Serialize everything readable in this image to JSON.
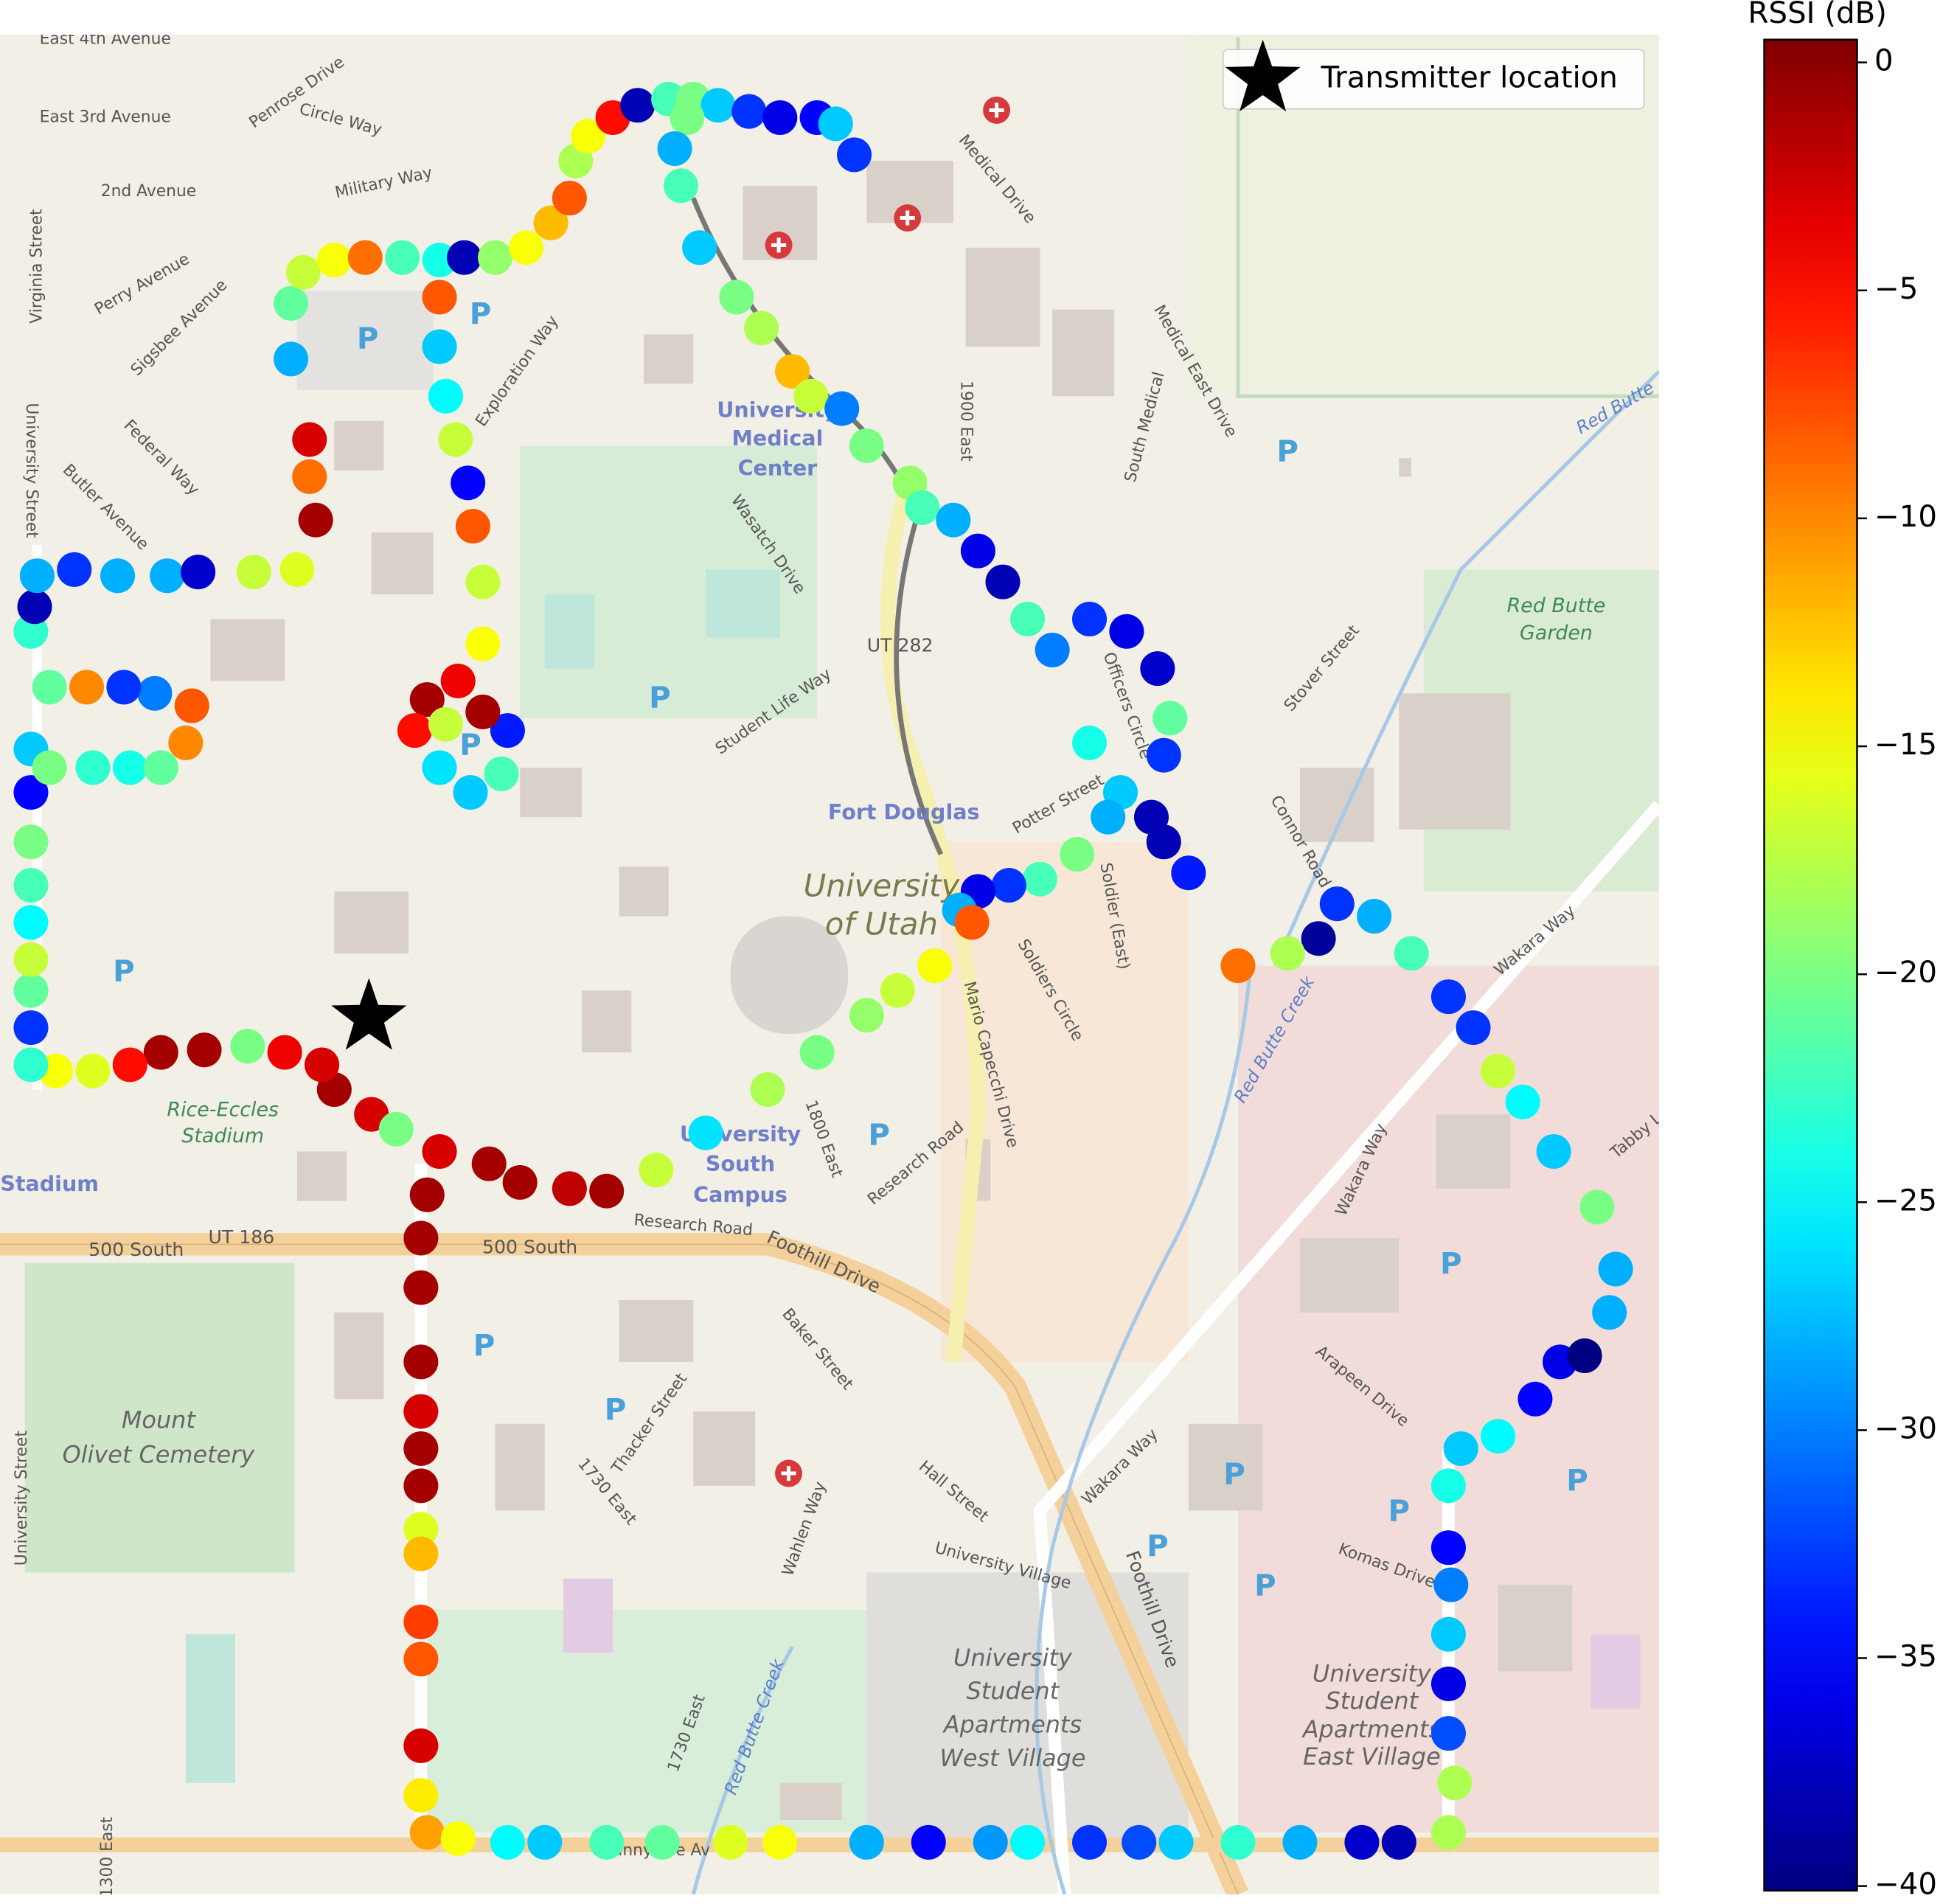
{
  "chart_data": {
    "type": "map-scatter",
    "xlim": [
      0,
      1340
    ],
    "ylim": [
      1530,
      28
    ],
    "colormap": "jet",
    "colorbar": {
      "label": "RSSI (dB)",
      "clim": [
        -40.1,
        0.5
      ],
      "ticks": [
        0,
        {
          "value": -5,
          "label": "−5"
        },
        {
          "value": -10,
          "label": "−10"
        },
        {
          "value": -15,
          "label": "−15"
        },
        {
          "value": -20,
          "label": "−20"
        },
        {
          "value": -25,
          "label": "−25"
        },
        {
          "value": -30,
          "label": "−30"
        },
        {
          "value": -35,
          "label": "−35"
        },
        {
          "value": -40,
          "label": "−40"
        }
      ]
    },
    "legend": {
      "label": "Transmitter location",
      "loc": "upper right"
    },
    "transmitter": {
      "x": 298,
      "y": 822
    },
    "parking_symbol": "P",
    "map_labels": [
      "East 4th Avenue",
      "East 3rd Avenue",
      "2nd Avenue",
      "Penrose Drive",
      "Circle Way",
      "Military Way",
      "Virginia Street",
      "Perry Avenue",
      "Sigsbee Avenue",
      "Federal Way",
      "Butler Avenue",
      "University Street",
      "Exploration Way",
      "University",
      "Medical",
      "Center",
      "Medical Drive",
      "Medical East Drive",
      "South Medical",
      "1900 East",
      "Wasatch Drive",
      "UT 282",
      "Student Life Way",
      "Officers Circle",
      "Potter Street",
      "Fort Douglas",
      "University",
      "of Utah",
      "Soldier (East)",
      "Soldiers Circle",
      "Mario Capecchi Drive",
      "Stover Street",
      "Connor Road",
      "Red Butte",
      "Garden",
      "Red Butte",
      "Red Butte Creek",
      "Wakara Way",
      "Wakara Way",
      "Wakara Way",
      "Tabby La",
      "1800 East",
      "Research Road",
      "Research Road",
      "University",
      "South",
      "Campus",
      "UT 186",
      "500 South",
      "500 South",
      "Foothill Drive",
      "Foothill Drive",
      "Rice-Eccles",
      "Stadium",
      "Stadium",
      "Mount",
      "Olivet Cemetery",
      "Baker Street",
      "Thacker Street",
      "1730 East",
      "1730 East",
      "Wahlen Way",
      "Hall Street",
      "University Village",
      "Arapeen Drive",
      "Komas Drive",
      "Red Butte Creek",
      "University",
      "Student",
      "Apartments",
      "West Village",
      "University",
      "Student",
      "Apartments",
      "East Village",
      "Sunnyside Av",
      "University Street",
      "1300 East"
    ],
    "points": [
      {
        "x": 235,
        "y": 290,
        "value": -28
      },
      {
        "x": 235,
        "y": 245,
        "value": -21
      },
      {
        "x": 245,
        "y": 220,
        "value": -17
      },
      {
        "x": 270,
        "y": 210,
        "value": -15
      },
      {
        "x": 295,
        "y": 208,
        "value": -9
      },
      {
        "x": 325,
        "y": 208,
        "value": -22
      },
      {
        "x": 355,
        "y": 210,
        "value": -24
      },
      {
        "x": 375,
        "y": 208,
        "value": -38
      },
      {
        "x": 400,
        "y": 208,
        "value": -19
      },
      {
        "x": 425,
        "y": 200,
        "value": -15
      },
      {
        "x": 445,
        "y": 180,
        "value": -12
      },
      {
        "x": 460,
        "y": 160,
        "value": -8
      },
      {
        "x": 465,
        "y": 130,
        "value": -18
      },
      {
        "x": 475,
        "y": 110,
        "value": -15
      },
      {
        "x": 495,
        "y": 95,
        "value": -5
      },
      {
        "x": 515,
        "y": 85,
        "value": -38
      },
      {
        "x": 540,
        "y": 80,
        "value": -22
      },
      {
        "x": 560,
        "y": 80,
        "value": -20
      },
      {
        "x": 580,
        "y": 85,
        "value": -27
      },
      {
        "x": 605,
        "y": 90,
        "value": -33
      },
      {
        "x": 630,
        "y": 95,
        "value": -36
      },
      {
        "x": 660,
        "y": 95,
        "value": -35
      },
      {
        "x": 675,
        "y": 100,
        "value": -27
      },
      {
        "x": 690,
        "y": 125,
        "value": -33
      },
      {
        "x": 555,
        "y": 95,
        "value": -20
      },
      {
        "x": 545,
        "y": 120,
        "value": -28
      },
      {
        "x": 550,
        "y": 150,
        "value": -22
      },
      {
        "x": 565,
        "y": 200,
        "value": -27
      },
      {
        "x": 595,
        "y": 240,
        "value": -20
      },
      {
        "x": 615,
        "y": 265,
        "value": -18
      },
      {
        "x": 640,
        "y": 300,
        "value": -12
      },
      {
        "x": 655,
        "y": 320,
        "value": -17
      },
      {
        "x": 680,
        "y": 330,
        "value": -30
      },
      {
        "x": 700,
        "y": 360,
        "value": -20
      },
      {
        "x": 735,
        "y": 390,
        "value": -19
      },
      {
        "x": 745,
        "y": 410,
        "value": -22
      },
      {
        "x": 770,
        "y": 420,
        "value": -28
      },
      {
        "x": 790,
        "y": 445,
        "value": -36
      },
      {
        "x": 810,
        "y": 470,
        "value": -38
      },
      {
        "x": 830,
        "y": 500,
        "value": -22
      },
      {
        "x": 850,
        "y": 525,
        "value": -30
      },
      {
        "x": 880,
        "y": 500,
        "value": -33
      },
      {
        "x": 910,
        "y": 510,
        "value": -36
      },
      {
        "x": 935,
        "y": 540,
        "value": -37
      },
      {
        "x": 945,
        "y": 580,
        "value": -21
      },
      {
        "x": 940,
        "y": 610,
        "value": -33
      },
      {
        "x": 930,
        "y": 660,
        "value": -38
      },
      {
        "x": 905,
        "y": 640,
        "value": -27
      },
      {
        "x": 880,
        "y": 600,
        "value": -24
      },
      {
        "x": 895,
        "y": 660,
        "value": -28
      },
      {
        "x": 870,
        "y": 690,
        "value": -20
      },
      {
        "x": 840,
        "y": 710,
        "value": -22
      },
      {
        "x": 815,
        "y": 715,
        "value": -33
      },
      {
        "x": 790,
        "y": 720,
        "value": -36
      },
      {
        "x": 775,
        "y": 735,
        "value": -28
      },
      {
        "x": 785,
        "y": 745,
        "value": -8
      },
      {
        "x": 755,
        "y": 780,
        "value": -15
      },
      {
        "x": 725,
        "y": 800,
        "value": -17
      },
      {
        "x": 700,
        "y": 820,
        "value": -19
      },
      {
        "x": 660,
        "y": 850,
        "value": -20
      },
      {
        "x": 620,
        "y": 880,
        "value": -18
      },
      {
        "x": 570,
        "y": 915,
        "value": -26
      },
      {
        "x": 530,
        "y": 945,
        "value": -17
      },
      {
        "x": 490,
        "y": 962,
        "value": -1
      },
      {
        "x": 460,
        "y": 960,
        "value": -2
      },
      {
        "x": 420,
        "y": 955,
        "value": -1
      },
      {
        "x": 395,
        "y": 940,
        "value": -1
      },
      {
        "x": 355,
        "y": 930,
        "value": -3
      },
      {
        "x": 345,
        "y": 965,
        "value": -1
      },
      {
        "x": 340,
        "y": 1000,
        "value": -1
      },
      {
        "x": 340,
        "y": 1040,
        "value": -1
      },
      {
        "x": 340,
        "y": 1100,
        "value": -1
      },
      {
        "x": 340,
        "y": 1140,
        "value": -3
      },
      {
        "x": 340,
        "y": 1170,
        "value": -1
      },
      {
        "x": 340,
        "y": 1200,
        "value": -1
      },
      {
        "x": 340,
        "y": 1235,
        "value": -16
      },
      {
        "x": 340,
        "y": 1255,
        "value": -12
      },
      {
        "x": 340,
        "y": 1310,
        "value": -7
      },
      {
        "x": 340,
        "y": 1340,
        "value": -8
      },
      {
        "x": 340,
        "y": 1410,
        "value": -3
      },
      {
        "x": 340,
        "y": 1450,
        "value": -14
      },
      {
        "x": 345,
        "y": 1480,
        "value": -11
      },
      {
        "x": 370,
        "y": 1485,
        "value": -15
      },
      {
        "x": 410,
        "y": 1488,
        "value": -25
      },
      {
        "x": 440,
        "y": 1488,
        "value": -27
      },
      {
        "x": 490,
        "y": 1488,
        "value": -22
      },
      {
        "x": 535,
        "y": 1488,
        "value": -21
      },
      {
        "x": 590,
        "y": 1488,
        "value": -16
      },
      {
        "x": 630,
        "y": 1488,
        "value": -15
      },
      {
        "x": 700,
        "y": 1488,
        "value": -28
      },
      {
        "x": 750,
        "y": 1488,
        "value": -35
      },
      {
        "x": 800,
        "y": 1488,
        "value": -29
      },
      {
        "x": 830,
        "y": 1488,
        "value": -25
      },
      {
        "x": 880,
        "y": 1488,
        "value": -33
      },
      {
        "x": 920,
        "y": 1488,
        "value": -32
      },
      {
        "x": 950,
        "y": 1488,
        "value": -27
      },
      {
        "x": 1000,
        "y": 1488,
        "value": -23
      },
      {
        "x": 1050,
        "y": 1488,
        "value": -28
      },
      {
        "x": 1100,
        "y": 1488,
        "value": -37
      },
      {
        "x": 1130,
        "y": 1488,
        "value": -38
      },
      {
        "x": 1170,
        "y": 1480,
        "value": -18
      },
      {
        "x": 1175,
        "y": 1440,
        "value": -18
      },
      {
        "x": 1170,
        "y": 1400,
        "value": -32
      },
      {
        "x": 1170,
        "y": 1360,
        "value": -36
      },
      {
        "x": 1170,
        "y": 1320,
        "value": -27
      },
      {
        "x": 1172,
        "y": 1280,
        "value": -30
      },
      {
        "x": 1170,
        "y": 1250,
        "value": -35
      },
      {
        "x": 1170,
        "y": 1200,
        "value": -24
      },
      {
        "x": 1180,
        "y": 1170,
        "value": -27
      },
      {
        "x": 1210,
        "y": 1160,
        "value": -25
      },
      {
        "x": 1240,
        "y": 1130,
        "value": -35
      },
      {
        "x": 1260,
        "y": 1100,
        "value": -36
      },
      {
        "x": 1280,
        "y": 1095,
        "value": -40
      },
      {
        "x": 1300,
        "y": 1060,
        "value": -28
      },
      {
        "x": 1305,
        "y": 1025,
        "value": -28
      },
      {
        "x": 1290,
        "y": 975,
        "value": -20
      },
      {
        "x": 1255,
        "y": 930,
        "value": -27
      },
      {
        "x": 1230,
        "y": 890,
        "value": -25
      },
      {
        "x": 1210,
        "y": 865,
        "value": -17
      },
      {
        "x": 1190,
        "y": 830,
        "value": -33
      },
      {
        "x": 1170,
        "y": 805,
        "value": -33
      },
      {
        "x": 1140,
        "y": 770,
        "value": -22
      },
      {
        "x": 1110,
        "y": 740,
        "value": -28
      },
      {
        "x": 1080,
        "y": 730,
        "value": -33
      },
      {
        "x": 1065,
        "y": 758,
        "value": -39
      },
      {
        "x": 1040,
        "y": 770,
        "value": -18
      },
      {
        "x": 1000,
        "y": 780,
        "value": -9
      },
      {
        "x": 960,
        "y": 705,
        "value": -34
      },
      {
        "x": 940,
        "y": 680,
        "value": -38
      },
      {
        "x": 300,
        "y": 900,
        "value": -3
      },
      {
        "x": 270,
        "y": 880,
        "value": -1
      },
      {
        "x": 260,
        "y": 860,
        "value": -3
      },
      {
        "x": 230,
        "y": 850,
        "value": -4
      },
      {
        "x": 200,
        "y": 845,
        "value": -20
      },
      {
        "x": 165,
        "y": 848,
        "value": -1
      },
      {
        "x": 130,
        "y": 850,
        "value": -1
      },
      {
        "x": 105,
        "y": 860,
        "value": -5
      },
      {
        "x": 75,
        "y": 865,
        "value": -16
      },
      {
        "x": 45,
        "y": 865,
        "value": -15
      },
      {
        "x": 25,
        "y": 860,
        "value": -23
      },
      {
        "x": 25,
        "y": 830,
        "value": -33
      },
      {
        "x": 25,
        "y": 800,
        "value": -21
      },
      {
        "x": 25,
        "y": 775,
        "value": -17
      },
      {
        "x": 25,
        "y": 745,
        "value": -25
      },
      {
        "x": 25,
        "y": 715,
        "value": -22
      },
      {
        "x": 25,
        "y": 680,
        "value": -20
      },
      {
        "x": 25,
        "y": 640,
        "value": -35
      },
      {
        "x": 25,
        "y": 605,
        "value": -27
      },
      {
        "x": 40,
        "y": 620,
        "value": -20
      },
      {
        "x": 75,
        "y": 620,
        "value": -23
      },
      {
        "x": 105,
        "y": 620,
        "value": -24
      },
      {
        "x": 130,
        "y": 620,
        "value": -21
      },
      {
        "x": 150,
        "y": 600,
        "value": -10
      },
      {
        "x": 155,
        "y": 570,
        "value": -8
      },
      {
        "x": 125,
        "y": 560,
        "value": -30
      },
      {
        "x": 100,
        "y": 555,
        "value": -33
      },
      {
        "x": 70,
        "y": 555,
        "value": -10
      },
      {
        "x": 40,
        "y": 555,
        "value": -21
      },
      {
        "x": 25,
        "y": 510,
        "value": -23
      },
      {
        "x": 28,
        "y": 490,
        "value": -38
      },
      {
        "x": 30,
        "y": 465,
        "value": -28
      },
      {
        "x": 60,
        "y": 460,
        "value": -33
      },
      {
        "x": 95,
        "y": 465,
        "value": -28
      },
      {
        "x": 135,
        "y": 465,
        "value": -28
      },
      {
        "x": 160,
        "y": 462,
        "value": -37
      },
      {
        "x": 205,
        "y": 462,
        "value": -17
      },
      {
        "x": 240,
        "y": 460,
        "value": -16
      },
      {
        "x": 255,
        "y": 420,
        "value": -1
      },
      {
        "x": 250,
        "y": 385,
        "value": -9
      },
      {
        "x": 250,
        "y": 355,
        "value": -3
      },
      {
        "x": 355,
        "y": 240,
        "value": -8
      },
      {
        "x": 355,
        "y": 280,
        "value": -27
      },
      {
        "x": 360,
        "y": 320,
        "value": -25
      },
      {
        "x": 368,
        "y": 355,
        "value": -17
      },
      {
        "x": 378,
        "y": 390,
        "value": -35
      },
      {
        "x": 382,
        "y": 425,
        "value": -8
      },
      {
        "x": 390,
        "y": 470,
        "value": -17
      },
      {
        "x": 390,
        "y": 520,
        "value": -15
      },
      {
        "x": 370,
        "y": 550,
        "value": -4
      },
      {
        "x": 345,
        "y": 565,
        "value": -1
      },
      {
        "x": 335,
        "y": 590,
        "value": -5
      },
      {
        "x": 355,
        "y": 620,
        "value": -26
      },
      {
        "x": 380,
        "y": 640,
        "value": -27
      },
      {
        "x": 405,
        "y": 625,
        "value": -22
      },
      {
        "x": 410,
        "y": 590,
        "value": -34
      },
      {
        "x": 390,
        "y": 575,
        "value": -1
      },
      {
        "x": 360,
        "y": 585,
        "value": -17
      },
      {
        "x": 320,
        "y": 912,
        "value": -20
      }
    ]
  }
}
